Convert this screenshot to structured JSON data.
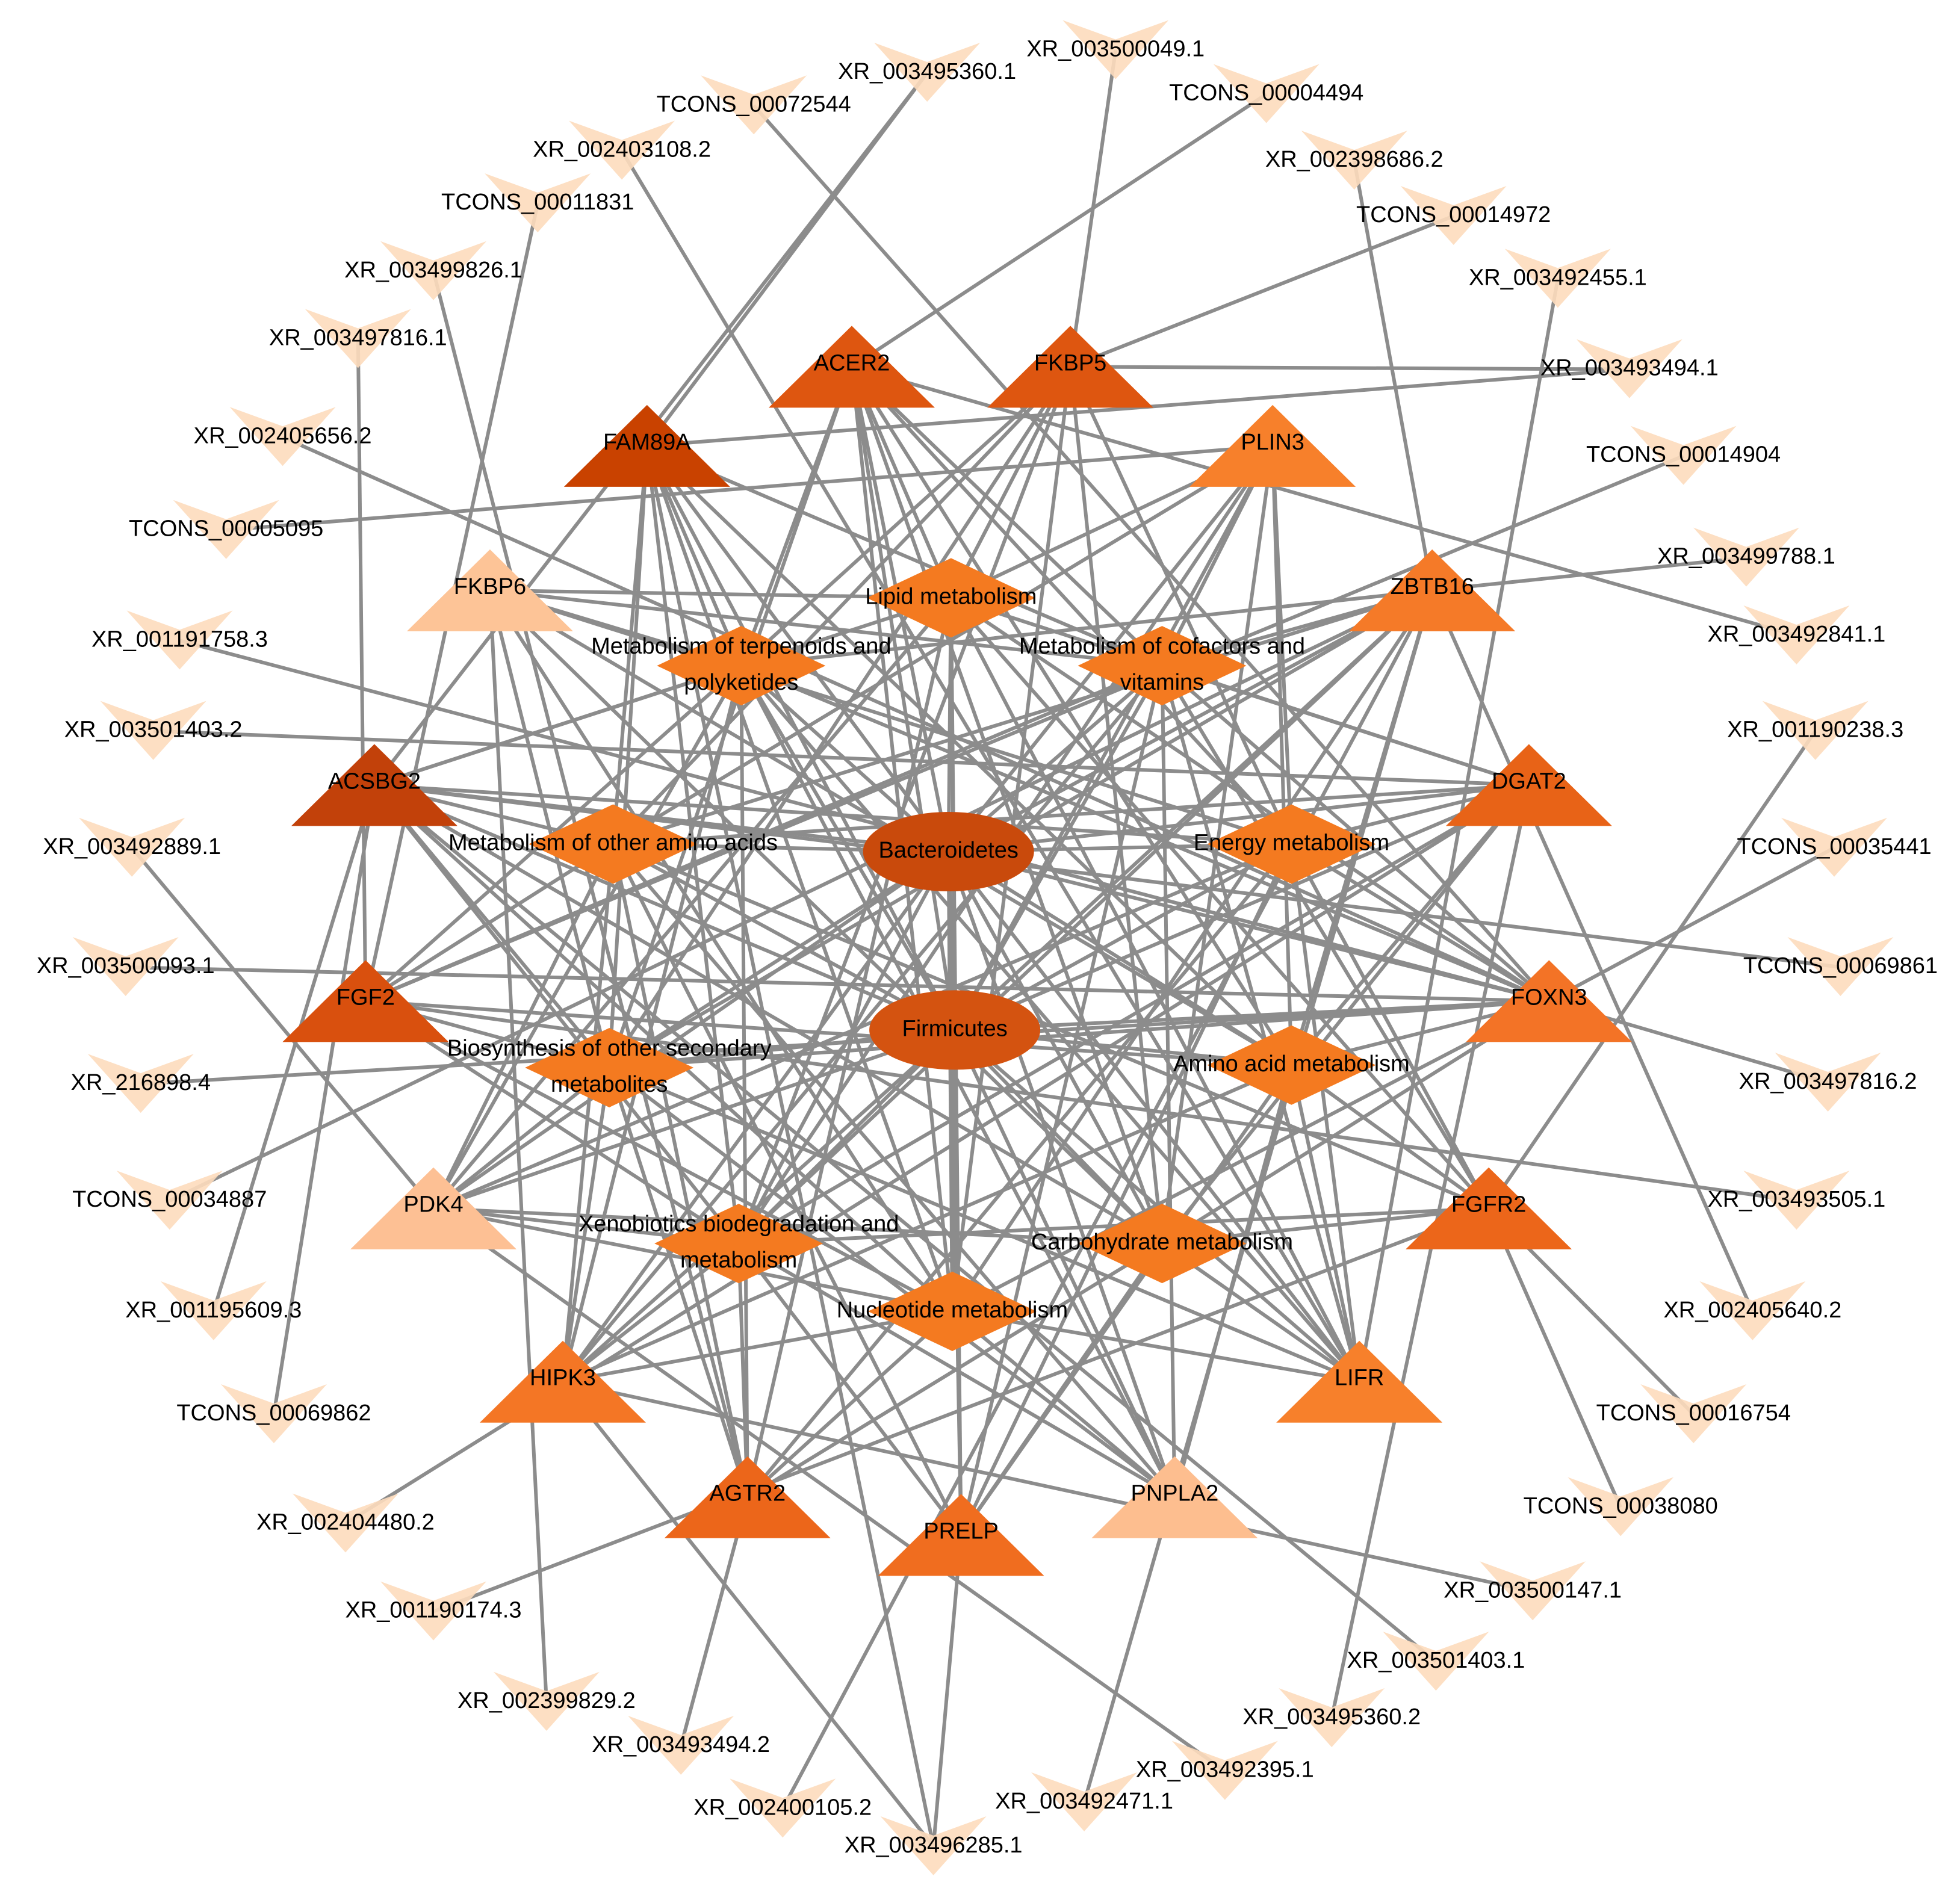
{
  "microbes": [
    {
      "label": "Bacteroidetes",
      "color": "#c94a0c"
    },
    {
      "label": "Firmicutes",
      "color": "#d45310"
    }
  ],
  "pathways": [
    {
      "lines": [
        "Lipid metabolism"
      ]
    },
    {
      "lines": [
        "Metabolism of terpenoids and",
        "polyketides"
      ]
    },
    {
      "lines": [
        "Metabolism of cofactors and",
        "vitamins"
      ]
    },
    {
      "lines": [
        "Metabolism of other amino acids"
      ]
    },
    {
      "lines": [
        "Energy metabolism"
      ]
    },
    {
      "lines": [
        "Biosynthesis of other secondary",
        "metabolites"
      ]
    },
    {
      "lines": [
        "Amino acid metabolism"
      ]
    },
    {
      "lines": [
        "Xenobiotics biodegradation and",
        "metabolism"
      ]
    },
    {
      "lines": [
        "Carbohydrate metabolism"
      ]
    },
    {
      "lines": [
        "Nucleotide metabolism"
      ]
    }
  ],
  "pathway_color": "#f47a20",
  "genes": [
    {
      "label": "FAM89A",
      "color": "#c94200"
    },
    {
      "label": "ACER2",
      "color": "#de5610"
    },
    {
      "label": "FKBP5",
      "color": "#de5610"
    },
    {
      "label": "PLIN3",
      "color": "#f7802b"
    },
    {
      "label": "ZBTB16",
      "color": "#f57a28"
    },
    {
      "label": "FKBP6",
      "color": "#fdc497"
    },
    {
      "label": "ACSBG2",
      "color": "#c2410a"
    },
    {
      "label": "DGAT2",
      "color": "#e86317"
    },
    {
      "label": "FGF2",
      "color": "#d9500e"
    },
    {
      "label": "FOXN3",
      "color": "#f37326"
    },
    {
      "label": "PDK4",
      "color": "#fdc094"
    },
    {
      "label": "FGFR2",
      "color": "#ec661a"
    },
    {
      "label": "HIPK3",
      "color": "#f47625"
    },
    {
      "label": "LIFR",
      "color": "#f7802b"
    },
    {
      "label": "AGTR2",
      "color": "#ec661a"
    },
    {
      "label": "PRELP",
      "color": "#f06d1f"
    },
    {
      "label": "PNPLA2",
      "color": "#fdbe8f"
    }
  ],
  "lncrna_color": "#fddcbd",
  "lncrnas": [
    "XR_003500049.1",
    "TCONS_00004494",
    "XR_002398686.2",
    "TCONS_00014972",
    "XR_003492455.1",
    "XR_003493494.1",
    "TCONS_00014904",
    "XR_003499788.1",
    "XR_003492841.1",
    "XR_001190238.3",
    "TCONS_00035441",
    "TCONS_00069861",
    "XR_003497816.2",
    "XR_003493505.1",
    "XR_002405640.2",
    "TCONS_00016754",
    "TCONS_00038080",
    "XR_003500147.1",
    "XR_003501403.1",
    "XR_003495360.2",
    "XR_003492395.1",
    "XR_003492471.1",
    "XR_003496285.1",
    "XR_002400105.2",
    "XR_003493494.2",
    "XR_002399829.2",
    "XR_001190174.3",
    "XR_002404480.2",
    "TCONS_00069862",
    "XR_001195609.3",
    "TCONS_00034887",
    "XR_216898.4",
    "XR_003500093.1",
    "XR_003492889.1",
    "XR_003501403.2",
    "XR_001191758.3",
    "TCONS_00005095",
    "XR_002405656.2",
    "XR_003497816.1",
    "XR_003499826.1",
    "TCONS_00011831",
    "XR_002403108.2",
    "TCONS_00072544",
    "XR_003495360.1"
  ]
}
